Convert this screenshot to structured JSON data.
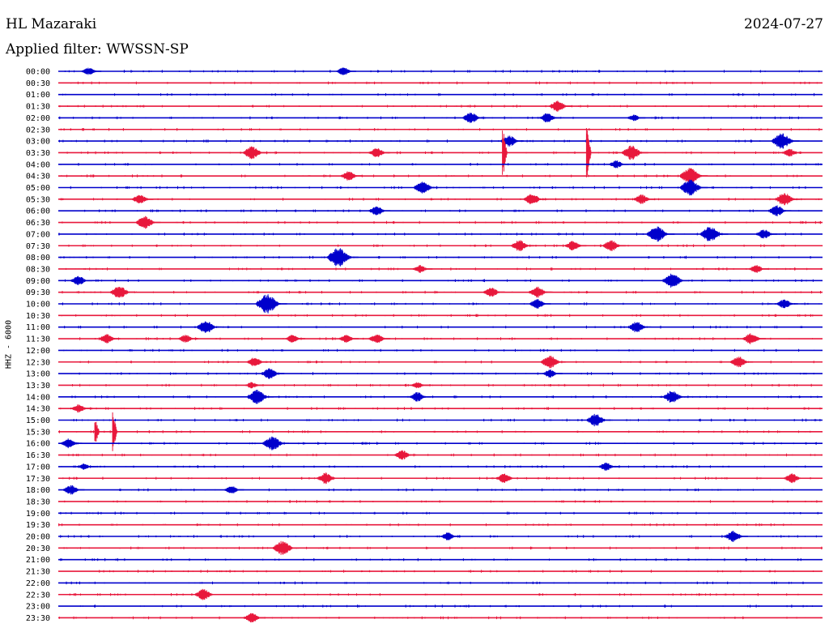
{
  "header": {
    "station": "HL Mazaraki",
    "date": "2024-07-27",
    "filter": "Applied filter: WWSSN-SP"
  },
  "axis": {
    "ylabel": "HHZ - 6000"
  },
  "colors": {
    "trace_a": "#0000cc",
    "trace_b": "#e8183c",
    "text": "#000000"
  },
  "chart_data": {
    "type": "line",
    "title": "",
    "ylabel": "HHZ - 6000",
    "rows": [
      "00:00",
      "00:30",
      "01:00",
      "01:30",
      "02:00",
      "02:30",
      "03:00",
      "03:30",
      "04:00",
      "04:30",
      "05:00",
      "05:30",
      "06:00",
      "06:30",
      "07:00",
      "07:30",
      "08:00",
      "08:30",
      "09:00",
      "09:30",
      "10:00",
      "10:30",
      "11:00",
      "11:30",
      "12:00",
      "12:30",
      "13:00",
      "13:30",
      "14:00",
      "14:30",
      "15:00",
      "15:30",
      "16:00",
      "16:30",
      "17:00",
      "17:30",
      "18:00",
      "18:30",
      "19:00",
      "19:30",
      "20:00",
      "20:30",
      "21:00",
      "21:30",
      "22:00",
      "22:30",
      "23:00",
      "23:30"
    ],
    "row_duration_minutes": 30,
    "events": [
      {
        "row": "00:00",
        "minute": 1.2,
        "amp": 5
      },
      {
        "row": "00:00",
        "minute": 11.2,
        "amp": 5
      },
      {
        "row": "01:30",
        "minute": 19.6,
        "amp": 7
      },
      {
        "row": "02:00",
        "minute": 16.2,
        "amp": 7
      },
      {
        "row": "02:00",
        "minute": 19.2,
        "amp": 6
      },
      {
        "row": "02:00",
        "minute": 22.6,
        "amp": 4
      },
      {
        "row": "03:00",
        "minute": 17.7,
        "amp": 7
      },
      {
        "row": "03:00",
        "minute": 28.4,
        "amp": 10
      },
      {
        "row": "03:30",
        "minute": 7.6,
        "amp": 8
      },
      {
        "row": "03:30",
        "minute": 12.5,
        "amp": 6
      },
      {
        "row": "03:30",
        "minute": 17.5,
        "amp": 35
      },
      {
        "row": "03:30",
        "minute": 20.8,
        "amp": 40
      },
      {
        "row": "03:30",
        "minute": 22.5,
        "amp": 9
      },
      {
        "row": "03:30",
        "minute": 28.7,
        "amp": 5
      },
      {
        "row": "04:00",
        "minute": 21.9,
        "amp": 5
      },
      {
        "row": "04:30",
        "minute": 11.4,
        "amp": 6
      },
      {
        "row": "04:30",
        "minute": 24.8,
        "amp": 10
      },
      {
        "row": "05:00",
        "minute": 14.3,
        "amp": 8
      },
      {
        "row": "05:00",
        "minute": 24.8,
        "amp": 10
      },
      {
        "row": "05:30",
        "minute": 3.2,
        "amp": 6
      },
      {
        "row": "05:30",
        "minute": 18.6,
        "amp": 7
      },
      {
        "row": "05:30",
        "minute": 22.9,
        "amp": 6
      },
      {
        "row": "05:30",
        "minute": 28.5,
        "amp": 8
      },
      {
        "row": "06:00",
        "minute": 12.5,
        "amp": 6
      },
      {
        "row": "06:00",
        "minute": 28.2,
        "amp": 7
      },
      {
        "row": "06:30",
        "minute": 3.4,
        "amp": 8
      },
      {
        "row": "07:00",
        "minute": 23.5,
        "amp": 10
      },
      {
        "row": "07:00",
        "minute": 25.6,
        "amp": 10
      },
      {
        "row": "07:00",
        "minute": 27.7,
        "amp": 6
      },
      {
        "row": "07:30",
        "minute": 18.1,
        "amp": 7
      },
      {
        "row": "07:30",
        "minute": 20.2,
        "amp": 6
      },
      {
        "row": "07:30",
        "minute": 21.7,
        "amp": 7
      },
      {
        "row": "08:00",
        "minute": 11.0,
        "amp": 12
      },
      {
        "row": "08:30",
        "minute": 14.2,
        "amp": 5
      },
      {
        "row": "08:30",
        "minute": 27.4,
        "amp": 5
      },
      {
        "row": "09:00",
        "minute": 0.8,
        "amp": 6
      },
      {
        "row": "09:00",
        "minute": 24.1,
        "amp": 9
      },
      {
        "row": "09:30",
        "minute": 2.4,
        "amp": 8
      },
      {
        "row": "09:30",
        "minute": 17.0,
        "amp": 6
      },
      {
        "row": "09:30",
        "minute": 18.8,
        "amp": 7
      },
      {
        "row": "10:00",
        "minute": 8.2,
        "amp": 12
      },
      {
        "row": "10:00",
        "minute": 18.8,
        "amp": 6
      },
      {
        "row": "10:00",
        "minute": 28.5,
        "amp": 6
      },
      {
        "row": "11:00",
        "minute": 5.8,
        "amp": 8
      },
      {
        "row": "11:00",
        "minute": 22.7,
        "amp": 7
      },
      {
        "row": "11:30",
        "minute": 1.9,
        "amp": 6
      },
      {
        "row": "11:30",
        "minute": 5.0,
        "amp": 5
      },
      {
        "row": "11:30",
        "minute": 9.2,
        "amp": 5
      },
      {
        "row": "11:30",
        "minute": 11.3,
        "amp": 5
      },
      {
        "row": "11:30",
        "minute": 12.5,
        "amp": 6
      },
      {
        "row": "11:30",
        "minute": 27.2,
        "amp": 7
      },
      {
        "row": "12:30",
        "minute": 7.7,
        "amp": 6
      },
      {
        "row": "12:30",
        "minute": 19.3,
        "amp": 8
      },
      {
        "row": "12:30",
        "minute": 26.7,
        "amp": 7
      },
      {
        "row": "13:00",
        "minute": 8.3,
        "amp": 7
      },
      {
        "row": "13:00",
        "minute": 19.3,
        "amp": 5
      },
      {
        "row": "13:30",
        "minute": 7.6,
        "amp": 4
      },
      {
        "row": "13:30",
        "minute": 14.1,
        "amp": 4
      },
      {
        "row": "14:00",
        "minute": 7.8,
        "amp": 9
      },
      {
        "row": "14:00",
        "minute": 14.1,
        "amp": 6
      },
      {
        "row": "14:00",
        "minute": 24.1,
        "amp": 8
      },
      {
        "row": "14:30",
        "minute": 0.8,
        "amp": 5
      },
      {
        "row": "15:00",
        "minute": 21.1,
        "amp": 8
      },
      {
        "row": "15:30",
        "minute": 1.5,
        "amp": 18
      },
      {
        "row": "15:30",
        "minute": 2.2,
        "amp": 26
      },
      {
        "row": "16:00",
        "minute": 0.4,
        "amp": 6
      },
      {
        "row": "16:00",
        "minute": 8.4,
        "amp": 9
      },
      {
        "row": "16:30",
        "minute": 13.5,
        "amp": 6
      },
      {
        "row": "17:00",
        "minute": 1.0,
        "amp": 4
      },
      {
        "row": "17:00",
        "minute": 21.5,
        "amp": 5
      },
      {
        "row": "17:30",
        "minute": 10.5,
        "amp": 7
      },
      {
        "row": "17:30",
        "minute": 17.5,
        "amp": 6
      },
      {
        "row": "17:30",
        "minute": 28.8,
        "amp": 6
      },
      {
        "row": "18:00",
        "minute": 0.5,
        "amp": 6
      },
      {
        "row": "18:00",
        "minute": 6.8,
        "amp": 5
      },
      {
        "row": "20:00",
        "minute": 15.3,
        "amp": 5
      },
      {
        "row": "20:00",
        "minute": 26.5,
        "amp": 7
      },
      {
        "row": "20:30",
        "minute": 8.8,
        "amp": 9
      },
      {
        "row": "22:30",
        "minute": 5.7,
        "amp": 7
      },
      {
        "row": "23:30",
        "minute": 7.6,
        "amp": 6
      }
    ]
  }
}
